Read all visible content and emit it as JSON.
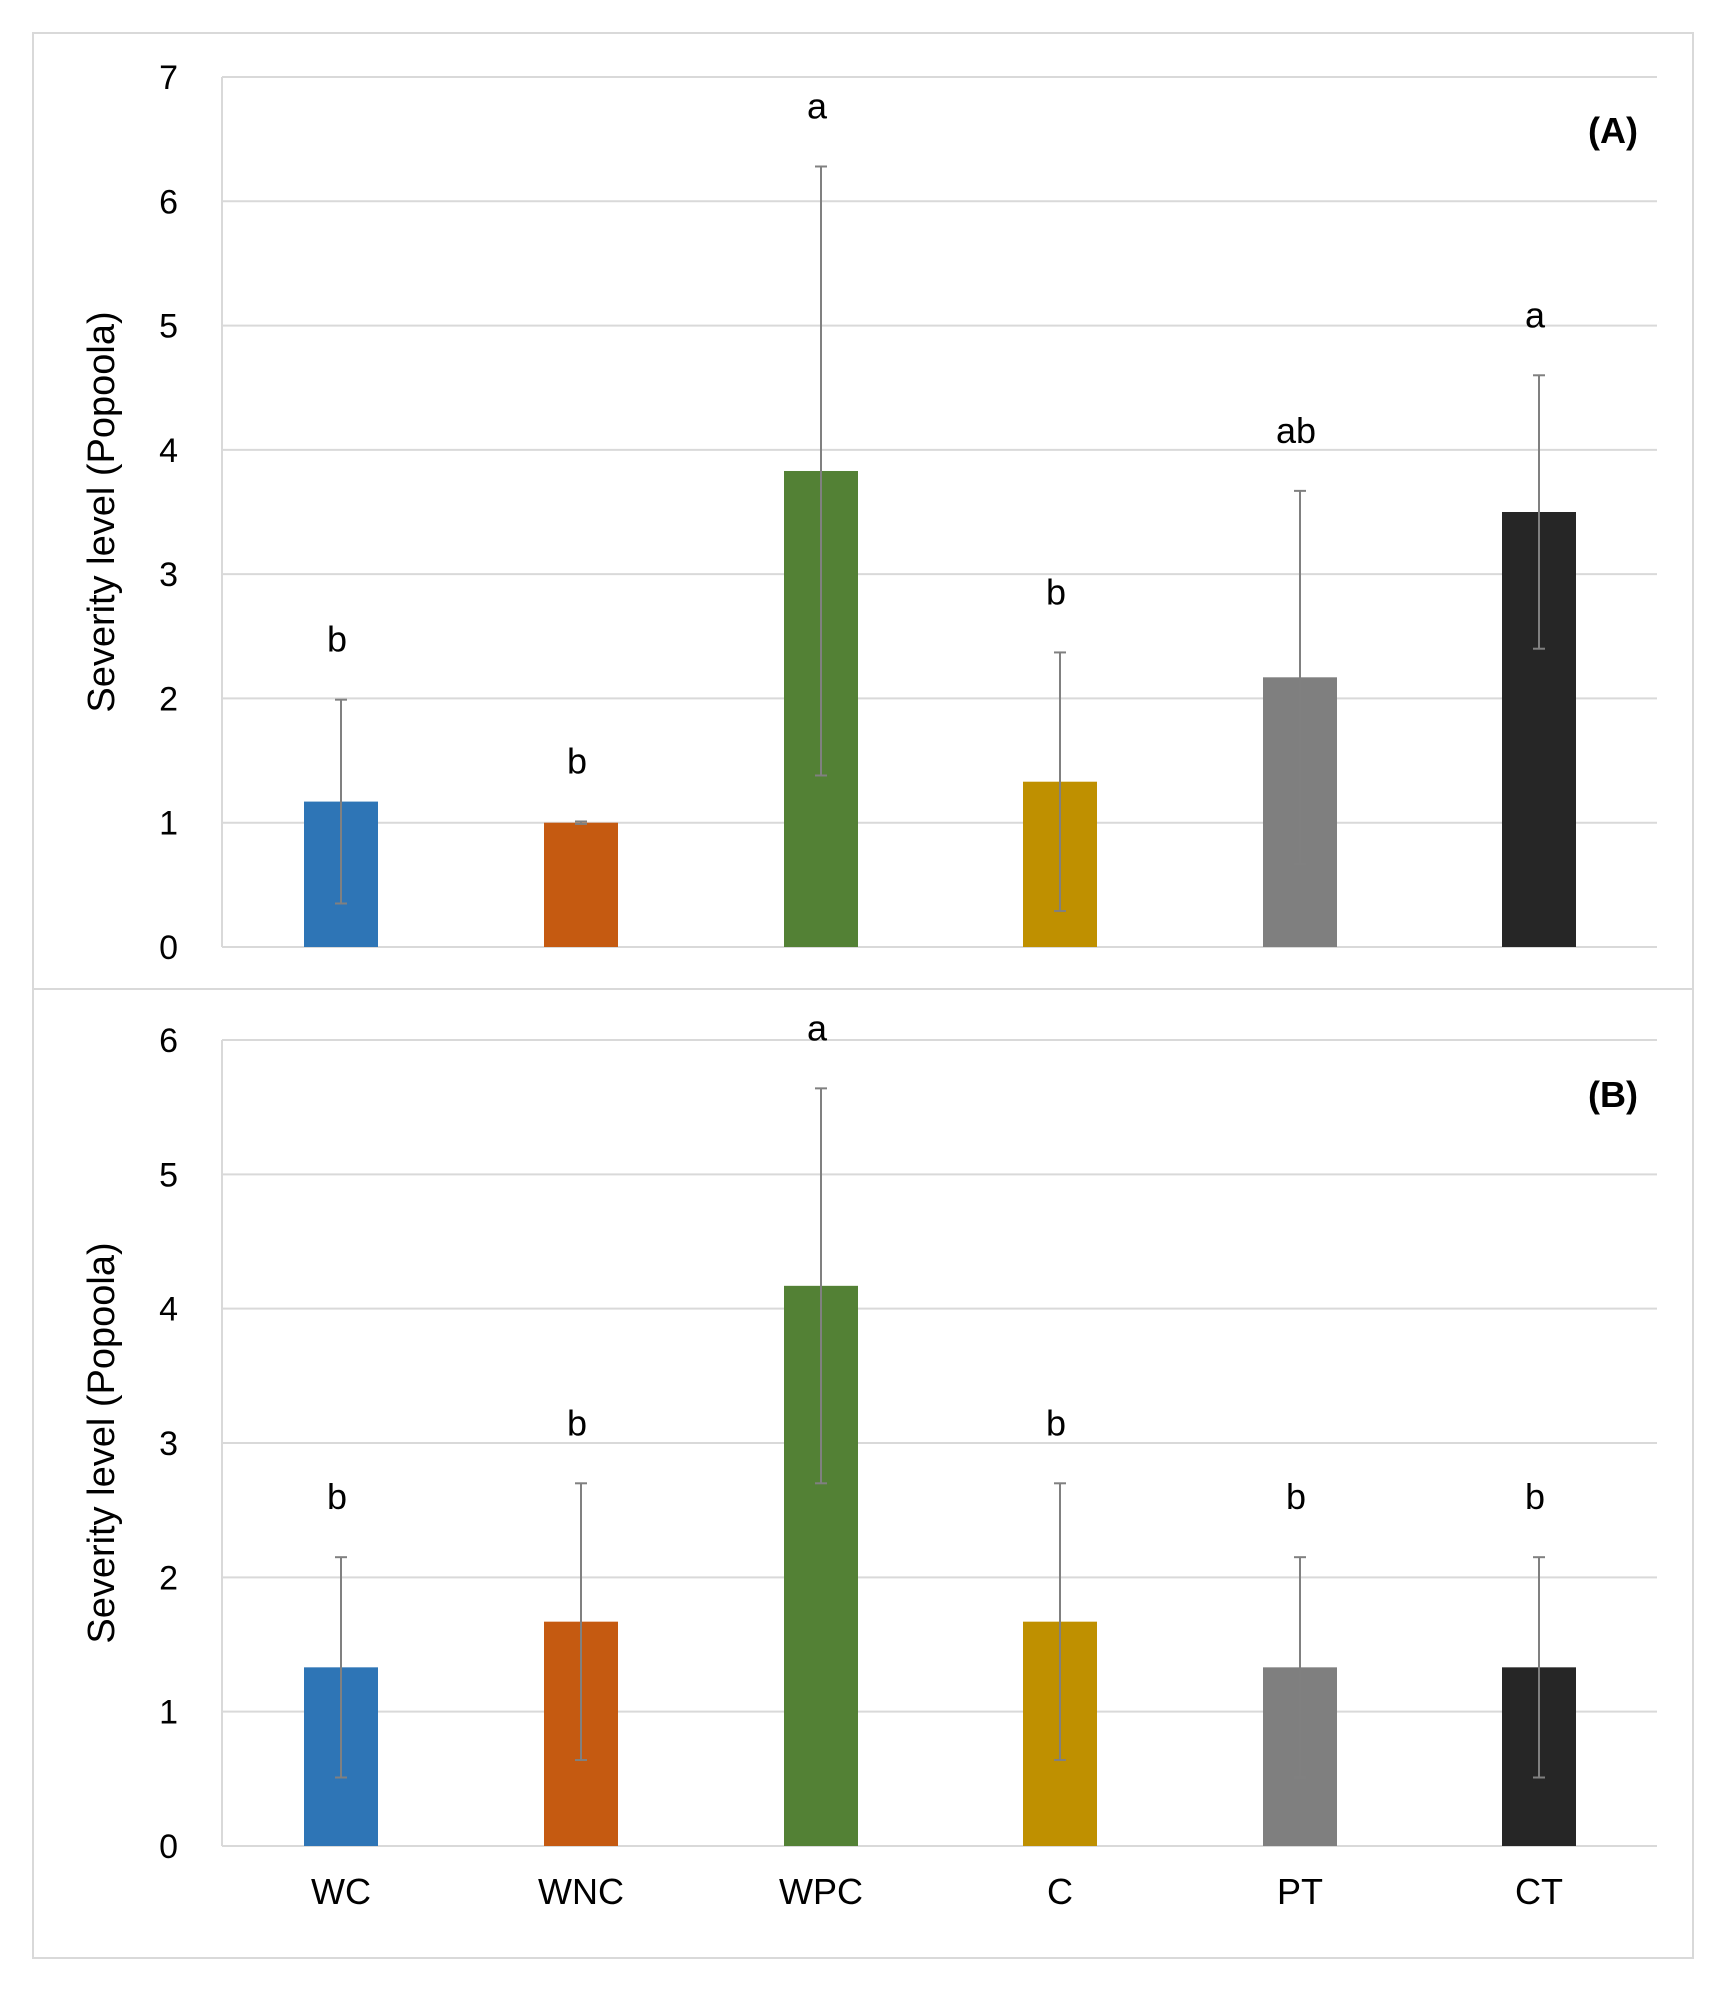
{
  "chart_data": [
    {
      "type": "bar",
      "panel_label": "(A)",
      "ylabel": "Severity level (Popoola)",
      "ylim": [
        0,
        7
      ],
      "yticks": [
        "0",
        "1",
        "2",
        "3",
        "4",
        "5",
        "6",
        "7"
      ],
      "categories": [
        "WC",
        "WNC",
        "WPC",
        "C",
        "PT",
        "CT"
      ],
      "values": [
        1.17,
        1.0,
        3.83,
        1.33,
        2.17,
        3.5
      ],
      "errors": [
        0.82,
        0.01,
        2.45,
        1.04,
        1.5,
        1.1
      ],
      "significance": [
        "b",
        "b",
        "a",
        "b",
        "ab",
        "a"
      ],
      "colors": [
        "#2e75b6",
        "#c55a11",
        "#538135",
        "#bf9000",
        "#7f7f7f",
        "#262626"
      ],
      "grid": true
    },
    {
      "type": "bar",
      "panel_label": "(B)",
      "ylabel": "Severity level (Popoola)",
      "ylim": [
        0,
        6
      ],
      "yticks": [
        "0",
        "1",
        "2",
        "3",
        "4",
        "5",
        "6"
      ],
      "categories": [
        "WC",
        "WNC",
        "WPC",
        "C",
        "PT",
        "CT"
      ],
      "values": [
        1.33,
        1.67,
        4.17,
        1.67,
        1.33,
        1.33
      ],
      "errors": [
        0.82,
        1.03,
        1.47,
        1.03,
        0.82,
        0.82
      ],
      "significance": [
        "b",
        "b",
        "a",
        "b",
        "b",
        "b"
      ],
      "colors": [
        "#2e75b6",
        "#c55a11",
        "#538135",
        "#bf9000",
        "#7f7f7f",
        "#262626"
      ],
      "grid": true,
      "xlabel_visible": true
    }
  ]
}
